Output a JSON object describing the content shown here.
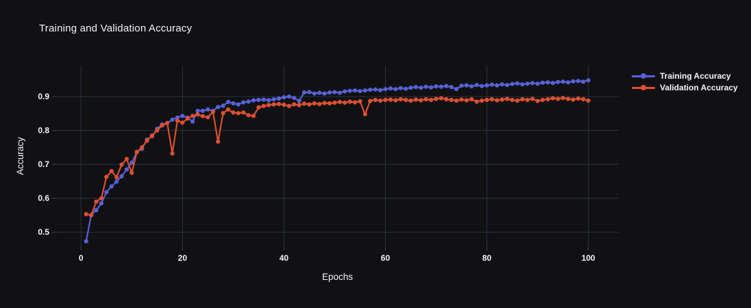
{
  "figure": {
    "title": "Training and Validation Accuracy",
    "background_color": "#111113",
    "text_color": "#f2f5fa",
    "grid_color": "#283442",
    "tick_mark_color": "#3b455a"
  },
  "chart_data": {
    "type": "line",
    "title": "Training and Validation Accuracy",
    "xlabel": "Epochs",
    "ylabel": "Accuracy",
    "xlim": [
      -4.9,
      106
    ],
    "ylim": [
      0.458,
      0.991
    ],
    "xticks": [
      0,
      20,
      40,
      60,
      80,
      100
    ],
    "yticks": [
      0.5,
      0.6,
      0.7,
      0.8,
      0.9
    ],
    "grid": true,
    "legend_position": "right",
    "marker": "circle",
    "x": [
      1,
      2,
      3,
      4,
      5,
      6,
      7,
      8,
      9,
      10,
      11,
      12,
      13,
      14,
      15,
      16,
      17,
      18,
      19,
      20,
      21,
      22,
      23,
      24,
      25,
      26,
      27,
      28,
      29,
      30,
      31,
      32,
      33,
      34,
      35,
      36,
      37,
      38,
      39,
      40,
      41,
      42,
      43,
      44,
      45,
      46,
      47,
      48,
      49,
      50,
      51,
      52,
      53,
      54,
      55,
      56,
      57,
      58,
      59,
      60,
      61,
      62,
      63,
      64,
      65,
      66,
      67,
      68,
      69,
      70,
      71,
      72,
      73,
      74,
      75,
      76,
      77,
      78,
      79,
      80,
      81,
      82,
      83,
      84,
      85,
      86,
      87,
      88,
      89,
      90,
      91,
      92,
      93,
      94,
      95,
      96,
      97,
      98,
      99,
      100
    ],
    "series": [
      {
        "name": "Training Accuracy",
        "color": "#5661D8",
        "values": [
          0.473,
          0.55,
          0.565,
          0.585,
          0.618,
          0.635,
          0.649,
          0.665,
          0.685,
          0.705,
          0.737,
          0.746,
          0.773,
          0.783,
          0.805,
          0.818,
          0.822,
          0.832,
          0.838,
          0.843,
          0.838,
          0.826,
          0.858,
          0.858,
          0.862,
          0.858,
          0.869,
          0.873,
          0.884,
          0.88,
          0.877,
          0.883,
          0.885,
          0.889,
          0.89,
          0.891,
          0.889,
          0.892,
          0.894,
          0.898,
          0.9,
          0.896,
          0.887,
          0.912,
          0.913,
          0.909,
          0.911,
          0.909,
          0.912,
          0.913,
          0.911,
          0.915,
          0.917,
          0.918,
          0.916,
          0.918,
          0.92,
          0.921,
          0.919,
          0.922,
          0.924,
          0.922,
          0.925,
          0.923,
          0.926,
          0.928,
          0.926,
          0.929,
          0.927,
          0.93,
          0.929,
          0.931,
          0.928,
          0.922,
          0.932,
          0.933,
          0.93,
          0.934,
          0.931,
          0.933,
          0.935,
          0.933,
          0.936,
          0.934,
          0.937,
          0.939,
          0.936,
          0.938,
          0.94,
          0.938,
          0.941,
          0.942,
          0.94,
          0.943,
          0.944,
          0.942,
          0.945,
          0.946,
          0.944,
          0.948
        ]
      },
      {
        "name": "Validation Accuracy",
        "color": "#DE4F32",
        "values": [
          0.553,
          0.55,
          0.59,
          0.6,
          0.663,
          0.68,
          0.662,
          0.699,
          0.716,
          0.675,
          0.736,
          0.75,
          0.77,
          0.785,
          0.8,
          0.815,
          0.822,
          0.732,
          0.829,
          0.823,
          0.835,
          0.843,
          0.847,
          0.842,
          0.839,
          0.855,
          0.767,
          0.851,
          0.862,
          0.853,
          0.851,
          0.853,
          0.845,
          0.843,
          0.868,
          0.872,
          0.875,
          0.877,
          0.878,
          0.876,
          0.872,
          0.877,
          0.875,
          0.879,
          0.877,
          0.88,
          0.878,
          0.881,
          0.88,
          0.882,
          0.884,
          0.882,
          0.885,
          0.883,
          0.886,
          0.848,
          0.887,
          0.89,
          0.888,
          0.89,
          0.891,
          0.889,
          0.892,
          0.89,
          0.888,
          0.891,
          0.889,
          0.892,
          0.89,
          0.893,
          0.895,
          0.892,
          0.89,
          0.888,
          0.891,
          0.889,
          0.892,
          0.885,
          0.888,
          0.89,
          0.892,
          0.889,
          0.891,
          0.893,
          0.89,
          0.888,
          0.892,
          0.89,
          0.893,
          0.887,
          0.89,
          0.892,
          0.895,
          0.893,
          0.896,
          0.893,
          0.891,
          0.894,
          0.892,
          0.888
        ]
      }
    ]
  }
}
